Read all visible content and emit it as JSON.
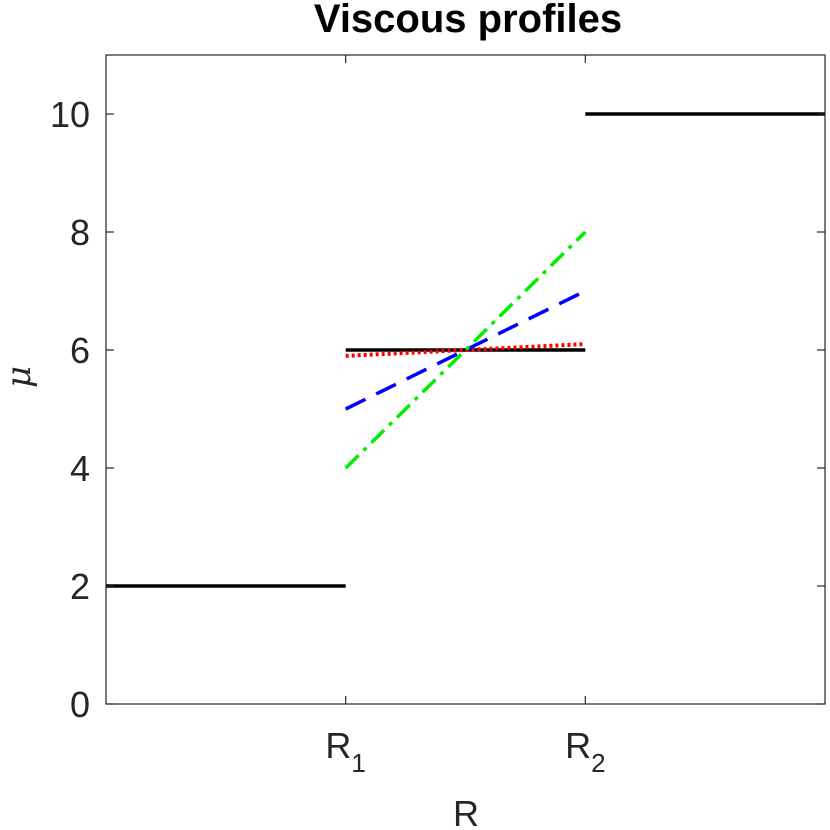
{
  "chart_data": {
    "type": "line",
    "title": "Viscous profiles",
    "xlabel": "R",
    "ylabel": "μ",
    "xlim": [
      0,
      3
    ],
    "ylim": [
      0,
      11
    ],
    "xticks": [
      {
        "value": 1,
        "main": "R",
        "sub": "1"
      },
      {
        "value": 2,
        "main": "R",
        "sub": "2"
      }
    ],
    "yticks": [
      0,
      2,
      4,
      6,
      8,
      10
    ],
    "grid": false,
    "legend": "none",
    "series": [
      {
        "color": "#000000",
        "style": "solid",
        "points": [
          [
            0,
            2
          ],
          [
            1,
            2
          ]
        ]
      },
      {
        "color": "#000000",
        "style": "solid",
        "points": [
          [
            1,
            6
          ],
          [
            2,
            6
          ]
        ]
      },
      {
        "color": "#000000",
        "style": "solid",
        "points": [
          [
            2,
            10
          ],
          [
            3,
            10
          ]
        ]
      },
      {
        "color": "#ff0000",
        "style": "dotted",
        "points": [
          [
            1,
            5.9
          ],
          [
            2,
            6.1
          ]
        ]
      },
      {
        "color": "#0000ff",
        "style": "dashed",
        "points": [
          [
            1,
            5
          ],
          [
            2,
            7
          ]
        ]
      },
      {
        "color": "#00ee00",
        "style": "dashdot",
        "points": [
          [
            1,
            4
          ],
          [
            2,
            8
          ]
        ]
      }
    ]
  }
}
